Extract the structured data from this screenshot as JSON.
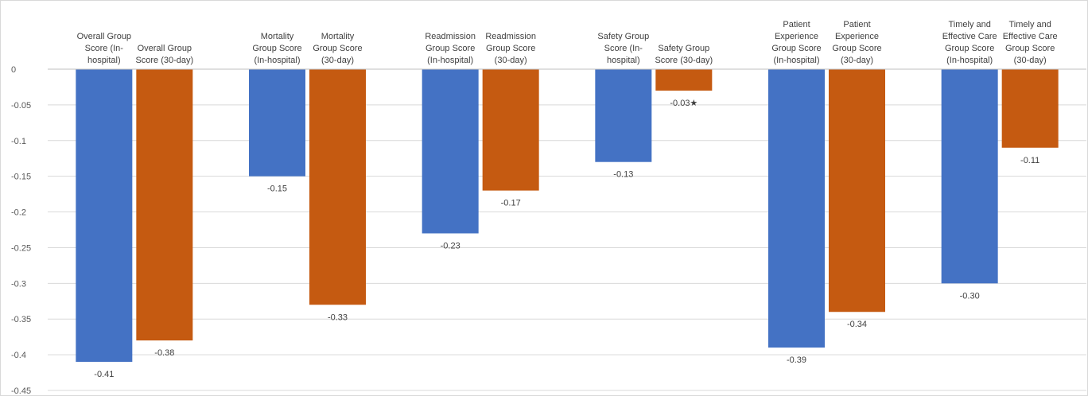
{
  "chart_data": {
    "type": "bar",
    "title": "",
    "xlabel": "",
    "ylabel": "",
    "ylim": [
      -0.45,
      0
    ],
    "yticks": [
      0,
      -0.05,
      -0.1,
      -0.15,
      -0.2,
      -0.25,
      -0.3,
      -0.35,
      -0.4,
      -0.45
    ],
    "ytick_labels": [
      "0",
      "-0.05",
      "-0.1",
      "-0.15",
      "-0.2",
      "-0.25",
      "-0.3",
      "-0.35",
      "-0.4",
      "-0.45"
    ],
    "grid": true,
    "colors": {
      "in_hospital": "#4472C4",
      "thirty_day": "#C55A11"
    },
    "bars": [
      {
        "label": [
          "Overall Group",
          "Score (In-",
          "hospital)"
        ],
        "value": -0.41,
        "value_label": "-0.41",
        "kind": "in_hospital"
      },
      {
        "label": [
          "Overall Group",
          "Score (30-day)"
        ],
        "value": -0.38,
        "value_label": "-0.38",
        "kind": "thirty_day"
      },
      {
        "label": [
          "Mortality",
          "Group Score",
          "(In-hospital)"
        ],
        "value": -0.15,
        "value_label": "-0.15",
        "kind": "in_hospital"
      },
      {
        "label": [
          "Mortality",
          "Group Score",
          "(30-day)"
        ],
        "value": -0.33,
        "value_label": "-0.33",
        "kind": "thirty_day"
      },
      {
        "label": [
          "Readmission",
          "Group Score",
          "(In-hospital)"
        ],
        "value": -0.23,
        "value_label": "-0.23",
        "kind": "in_hospital"
      },
      {
        "label": [
          "Readmission",
          "Group Score",
          "(30-day)"
        ],
        "value": -0.17,
        "value_label": "-0.17",
        "kind": "thirty_day"
      },
      {
        "label": [
          "Safety Group",
          "Score (In-",
          "hospital)"
        ],
        "value": -0.13,
        "value_label": "-0.13",
        "kind": "in_hospital"
      },
      {
        "label": [
          "Safety Group",
          "Score (30-day)"
        ],
        "value": -0.03,
        "value_label": "-0.03★",
        "kind": "thirty_day"
      },
      {
        "label": [
          "Patient",
          "Experience",
          "Group Score",
          "(In-hospital)"
        ],
        "value": -0.39,
        "value_label": "-0.39",
        "kind": "in_hospital"
      },
      {
        "label": [
          "Patient",
          "Experience",
          "Group Score",
          "(30-day)"
        ],
        "value": -0.34,
        "value_label": "-0.34",
        "kind": "thirty_day"
      },
      {
        "label": [
          "Timely and",
          "Effective Care",
          "Group Score",
          "(In-hospital)"
        ],
        "value": -0.3,
        "value_label": "-0.30",
        "kind": "in_hospital"
      },
      {
        "label": [
          "Timely and",
          "Effective Care",
          "Group Score",
          "(30-day)"
        ],
        "value": -0.11,
        "value_label": "-0.11",
        "kind": "thirty_day"
      }
    ]
  }
}
